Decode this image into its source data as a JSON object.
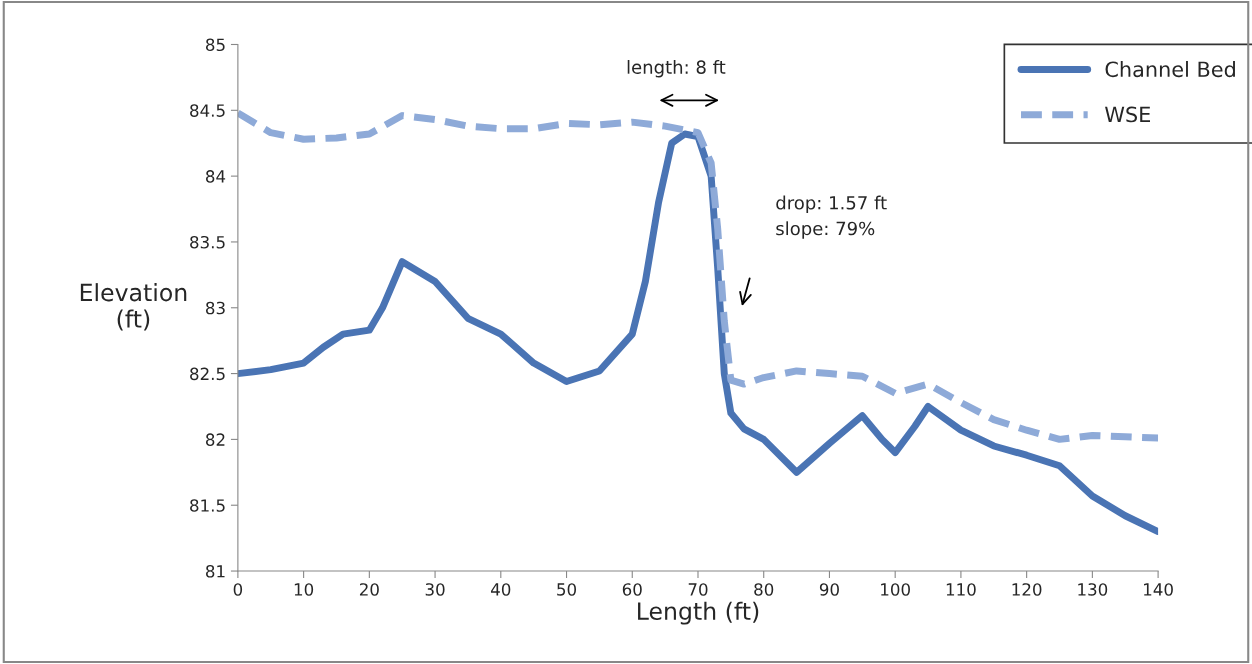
{
  "chart_data": {
    "type": "line",
    "xlabel": "Length (ft)",
    "ylabel": "Elevation\n(ft)",
    "x": [
      0,
      5,
      10,
      13,
      16,
      20,
      22,
      25,
      30,
      35,
      40,
      45,
      50,
      55,
      60,
      62,
      64,
      66,
      68,
      70,
      72,
      73,
      74,
      75,
      77,
      80,
      85,
      90,
      95,
      98,
      100,
      103,
      105,
      110,
      115,
      120,
      125,
      130,
      135,
      140
    ],
    "series": [
      {
        "name": "Channel Bed",
        "color": "#4a74b4",
        "line_style": "solid",
        "values": [
          82.5,
          82.53,
          82.58,
          82.7,
          82.8,
          82.83,
          83.0,
          83.35,
          83.2,
          82.92,
          82.8,
          82.58,
          82.44,
          82.52,
          82.8,
          83.2,
          83.8,
          84.25,
          84.32,
          84.3,
          84.0,
          83.3,
          82.5,
          82.2,
          82.08,
          82.0,
          81.75,
          81.97,
          82.18,
          82.0,
          81.9,
          82.1,
          82.25,
          82.07,
          81.95,
          81.88,
          81.8,
          81.57,
          81.42,
          81.3
        ]
      },
      {
        "name": "WSE",
        "color": "#8eaad8",
        "line_style": "dashed",
        "x": [
          0,
          5,
          10,
          15,
          20,
          25,
          30,
          35,
          40,
          45,
          50,
          55,
          60,
          65,
          70,
          72,
          73,
          74,
          75,
          77,
          80,
          85,
          90,
          95,
          100,
          105,
          110,
          115,
          120,
          125,
          130,
          135,
          140
        ],
        "values": [
          84.48,
          84.33,
          84.28,
          84.29,
          84.32,
          84.46,
          84.43,
          84.38,
          84.36,
          84.36,
          84.4,
          84.39,
          84.41,
          84.38,
          84.33,
          84.1,
          83.6,
          82.9,
          82.45,
          82.42,
          82.47,
          82.52,
          82.5,
          82.48,
          82.35,
          82.42,
          82.28,
          82.15,
          82.07,
          82.0,
          82.03,
          82.02,
          82.01
        ]
      }
    ],
    "annotations": [
      "length: 8 ft",
      "drop: 1.57 ft\nslope: 79%"
    ],
    "xlim": [
      0,
      140
    ],
    "xticks": [
      0,
      10,
      20,
      30,
      40,
      50,
      60,
      70,
      80,
      90,
      100,
      110,
      120,
      130,
      140
    ],
    "ylim": [
      81,
      85
    ],
    "yticks": [
      81,
      81.5,
      82,
      82.5,
      83,
      83.5,
      84,
      84.5,
      85
    ],
    "grid": false,
    "legend": "top right",
    "marker": "none"
  }
}
